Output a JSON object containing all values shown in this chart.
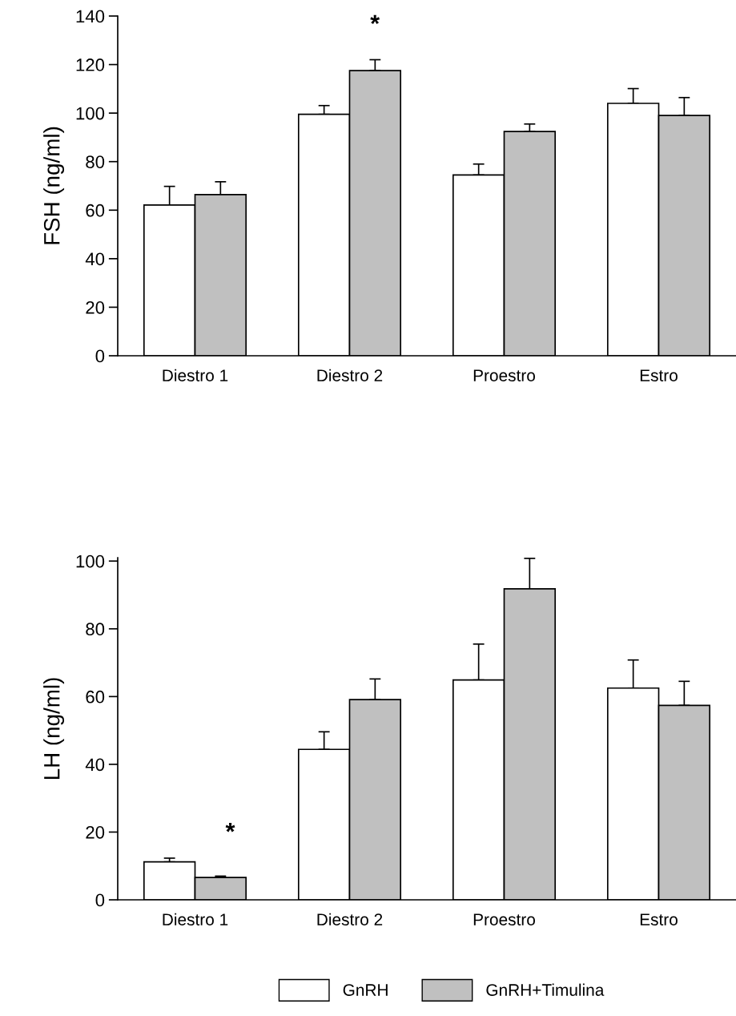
{
  "chart_data": [
    {
      "type": "bar",
      "ylabel": "FSH (ng/ml)",
      "categories": [
        "Diestro 1",
        "Diestro 2",
        "Proestro",
        "Estro"
      ],
      "ylim": [
        0,
        140
      ],
      "yticks": [
        0,
        20,
        40,
        60,
        80,
        100,
        120,
        140
      ],
      "grid": false,
      "legend": false,
      "series": [
        {
          "color": "#ffffff",
          "values": [
            62.1,
            99.5,
            74.5,
            104.0
          ],
          "errors": [
            [
              62.1,
              69.8
            ],
            [
              99.5,
              103.1
            ],
            [
              74.5,
              79.0
            ],
            [
              104.0,
              110.1
            ]
          ]
        },
        {
          "color": "#c0c0c0",
          "values": [
            66.4,
            117.5,
            92.4,
            99.0
          ],
          "errors": [
            [
              66.4,
              71.7
            ],
            [
              117.5,
              122.0
            ],
            [
              92.4,
              95.5
            ],
            [
              99.0,
              106.4
            ]
          ]
        }
      ],
      "annotations": [
        "*"
      ]
    },
    {
      "type": "bar",
      "ylabel": "LH (ng/ml)",
      "categories": [
        "Diestro 1",
        "Diestro 2",
        "Proestro",
        "Estro"
      ],
      "ylim": [
        0,
        101
      ],
      "yticks": [
        0,
        20,
        40,
        60,
        80,
        100
      ],
      "grid": false,
      "legend": "bottom",
      "series": [
        {
          "name": "GnRH",
          "color": "#ffffff",
          "values": [
            11.2,
            44.4,
            64.9,
            62.5
          ],
          "errors": [
            [
              11.2,
              12.3
            ],
            [
              44.4,
              49.6
            ],
            [
              64.9,
              75.5
            ],
            [
              62.5,
              70.8
            ]
          ]
        },
        {
          "name": "GnRH+Timulina",
          "color": "#c0c0c0",
          "values": [
            6.6,
            59.1,
            91.8,
            57.4
          ],
          "errors": [
            [
              6.6,
              7.0
            ],
            [
              59.1,
              65.2
            ],
            [
              91.8,
              100.8
            ],
            [
              57.4,
              64.5
            ]
          ]
        }
      ],
      "annotations": [
        "*"
      ]
    }
  ]
}
